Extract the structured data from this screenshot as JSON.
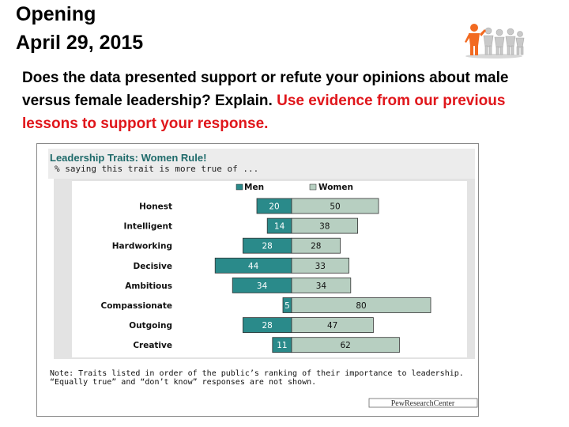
{
  "slide": {
    "title_line1": "Opening",
    "title_line2": "April 29, 2015",
    "prompt_black": "Does the data presented  support or refute your opinions about male versus female leadership? Explain. ",
    "prompt_red": "Use evidence from our previous lessons to support your response."
  },
  "logo_icon": "people-group-icon",
  "colors": {
    "men": "#2a8a8a",
    "women": "#b7cfc1",
    "chart_title": "#1e6a6a",
    "prompt_highlight": "#e0161b",
    "logo_accent": "#f26a21"
  },
  "chart_data": {
    "type": "bar",
    "title": "Leadership Traits: Women Rule!",
    "subtitle": "% saying this trait is more true of ...",
    "categories": [
      "Honest",
      "Intelligent",
      "Hardworking",
      "Decisive",
      "Ambitious",
      "Compassionate",
      "Outgoing",
      "Creative"
    ],
    "series": [
      {
        "name": "Men",
        "values": [
          20,
          14,
          28,
          44,
          34,
          5,
          28,
          11
        ]
      },
      {
        "name": "Women",
        "values": [
          50,
          38,
          28,
          33,
          34,
          80,
          47,
          62
        ]
      }
    ],
    "layout_note": "diverging horizontal bars; Men extend left of center, Women extend right",
    "legend_position": "top-center",
    "grid": false,
    "note": "Note: Traits listed in order of the public’s ranking of their importance to leadership. “Equally true” and “don’t know” responses are not shown.",
    "source": "PewResearchCenter"
  }
}
